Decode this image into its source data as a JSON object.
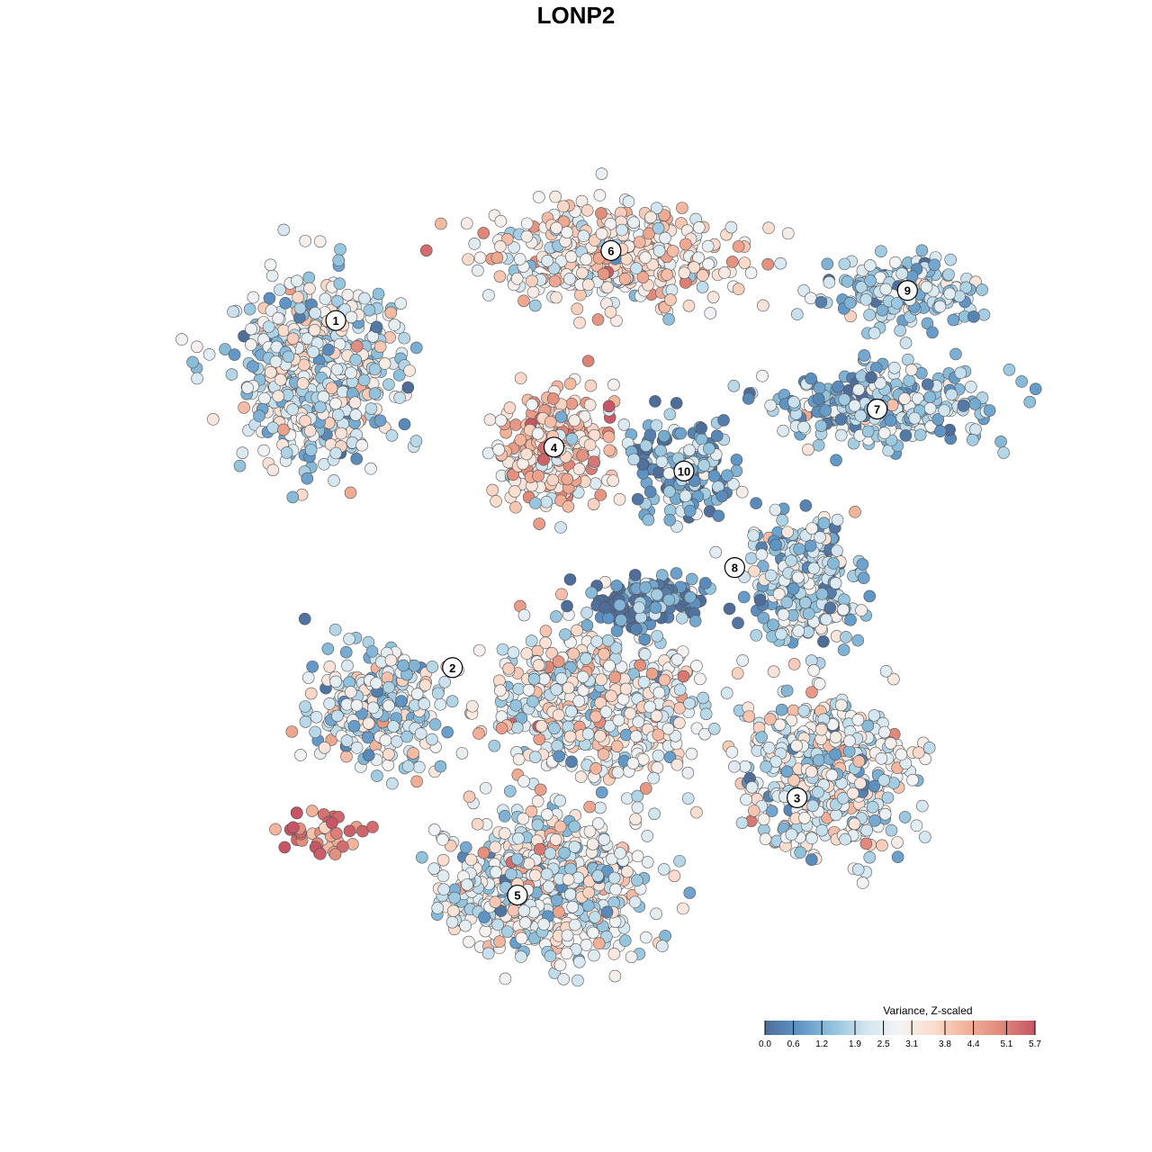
{
  "title": "LONP2",
  "chart_data": {
    "type": "scatter",
    "title": "LONP2",
    "xlabel": "",
    "ylabel": "",
    "grid": false,
    "axes_visible": false,
    "xlim": [
      -47,
      47
    ],
    "ylim": [
      -45,
      47
    ],
    "color_scale": {
      "title": "Variance, Z-scaled",
      "range": [
        0.0,
        5.7
      ],
      "ticks": [
        "0.0",
        "0.6",
        "1.2",
        "1.9",
        "2.5",
        "3.1",
        "3.8",
        "4.4",
        "5.1",
        "5.7"
      ],
      "colors": [
        "#4e6d98",
        "#5f95c6",
        "#91c2dc",
        "#d3e6f0",
        "#f4f4f4",
        "#fbdccd",
        "#f2b097",
        "#e0897a",
        "#c65565"
      ],
      "legend_position": "bottom-right"
    },
    "clusters": [
      {
        "label": "1",
        "center": [
          -31.5,
          24
        ],
        "spread": [
          8,
          9
        ],
        "n": 650,
        "mean_value": 2.3
      },
      {
        "label": "6",
        "center": [
          1.5,
          37
        ],
        "spread": [
          12,
          5
        ],
        "n": 420,
        "mean_value": 3.2
      },
      {
        "label": "4",
        "center": [
          -5,
          15
        ],
        "spread": [
          5.5,
          5.5
        ],
        "n": 300,
        "mean_value": 3.7
      },
      {
        "label": "9",
        "center": [
          34,
          33
        ],
        "spread": [
          8,
          3.5
        ],
        "n": 180,
        "mean_value": 1.8
      },
      {
        "label": "7",
        "center": [
          32,
          20
        ],
        "spread": [
          11,
          4
        ],
        "n": 300,
        "mean_value": 1.7
      },
      {
        "label": "10",
        "center": [
          9,
          13
        ],
        "spread": [
          5,
          5
        ],
        "n": 150,
        "mean_value": 1.0
      },
      {
        "label": "8",
        "center": [
          23,
          0
        ],
        "spread": [
          6,
          7
        ],
        "n": 260,
        "mean_value": 1.8
      },
      {
        "label": "2",
        "center": [
          -25,
          -14
        ],
        "spread": [
          7,
          6
        ],
        "n": 280,
        "mean_value": 2.3
      },
      {
        "label": "3",
        "center": [
          25,
          -22
        ],
        "spread": [
          9,
          8
        ],
        "n": 500,
        "mean_value": 2.4
      },
      {
        "label": "5",
        "center": [
          -6,
          -34
        ],
        "spread": [
          10,
          7
        ],
        "n": 650,
        "mean_value": 2.6
      },
      {
        "label": "",
        "center": [
          -0.5,
          -13
        ],
        "spread": [
          10,
          8
        ],
        "n": 600,
        "mean_value": 2.8
      },
      {
        "label": "",
        "center": [
          5.5,
          -2
        ],
        "spread": [
          6,
          2.5
        ],
        "n": 150,
        "mean_value": 0.4
      },
      {
        "label": "",
        "center": [
          -31,
          -28
        ],
        "spread": [
          4,
          2.5
        ],
        "n": 40,
        "mean_value": 4.6
      }
    ],
    "cluster_label_positions": [
      {
        "label": "1",
        "at": [
          -29.5,
          29.6
        ]
      },
      {
        "label": "6",
        "at": [
          1.4,
          37.5
        ]
      },
      {
        "label": "4",
        "at": [
          -5,
          15.3
        ]
      },
      {
        "label": "9",
        "at": [
          34.7,
          33
        ]
      },
      {
        "label": "7",
        "at": [
          31.3,
          19.6
        ]
      },
      {
        "label": "10",
        "at": [
          9.6,
          12.6
        ]
      },
      {
        "label": "8",
        "at": [
          15.3,
          1.7
        ]
      },
      {
        "label": "2",
        "at": [
          -16.4,
          -9.6
        ]
      },
      {
        "label": "3",
        "at": [
          22.3,
          -24.3
        ]
      },
      {
        "label": "5",
        "at": [
          -9.1,
          -35.3
        ]
      }
    ]
  }
}
